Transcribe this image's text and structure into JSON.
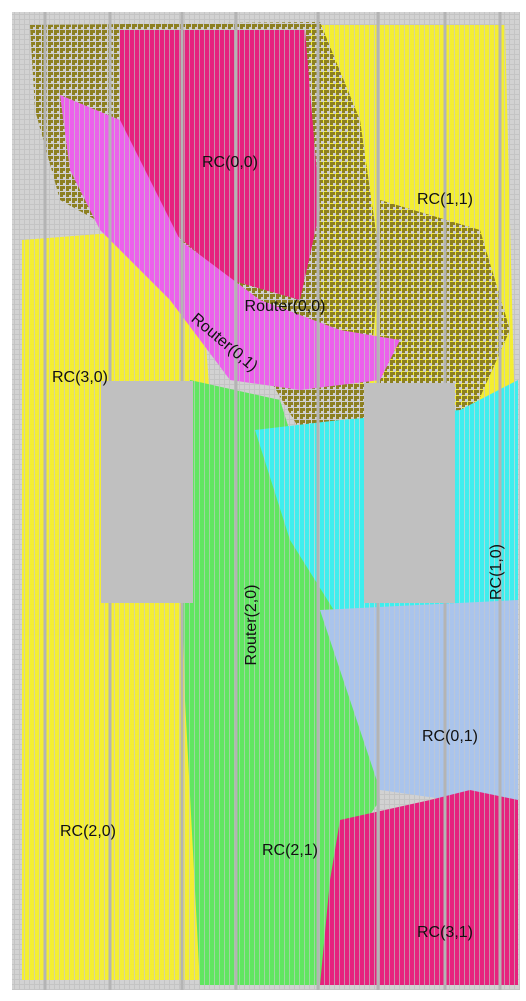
{
  "labels": [
    {
      "text": "RC(0,0)"
    },
    {
      "text": "RC(1,1)"
    },
    {
      "text": "Router(0,0)"
    },
    {
      "text": "Router(0,1)"
    },
    {
      "text": "RC(3,0)"
    },
    {
      "text": "Router(2,0)"
    },
    {
      "text": "RC(1,0)"
    },
    {
      "text": "RC(0,1)"
    },
    {
      "text": "RC(2,0)"
    },
    {
      "text": "RC(2,1)"
    },
    {
      "text": "RC(3,1)"
    }
  ]
}
